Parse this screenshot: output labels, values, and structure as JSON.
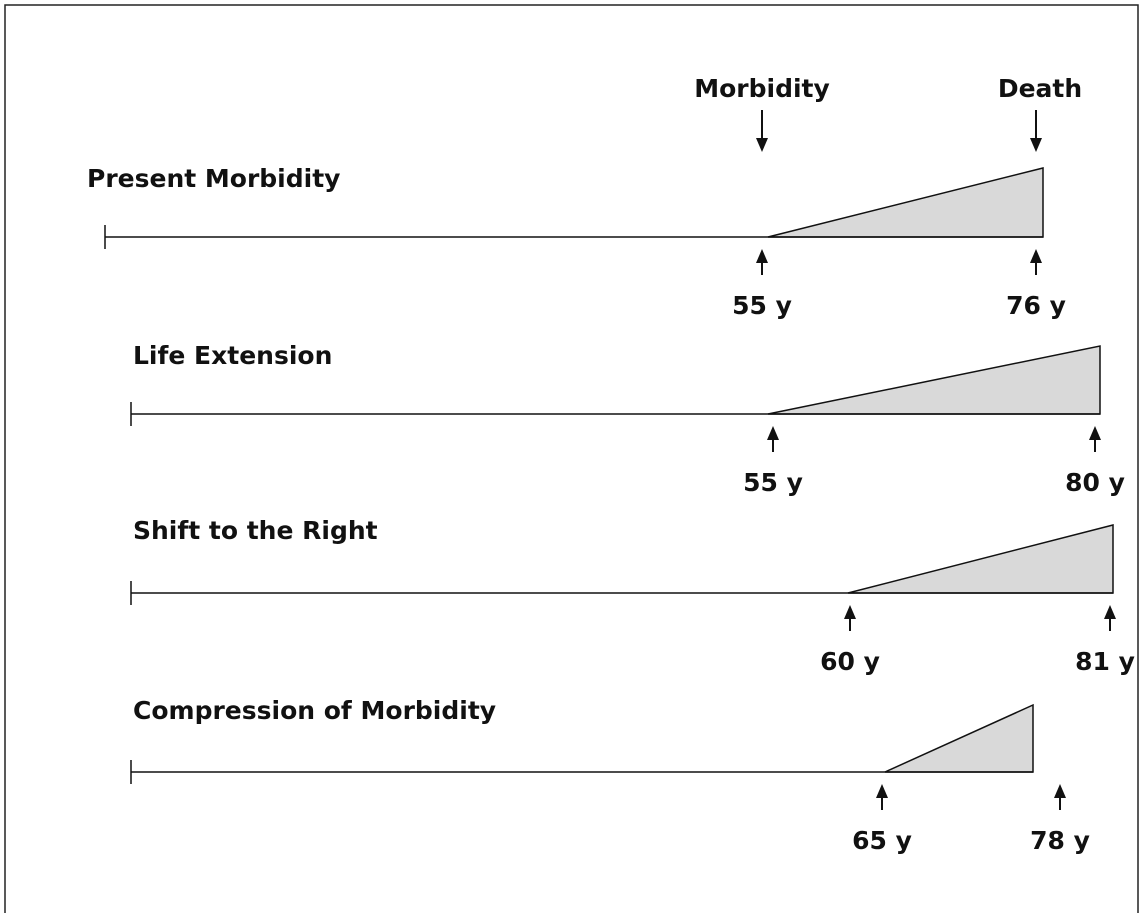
{
  "header": {
    "morbidity": "Morbidity",
    "death": "Death"
  },
  "rows": [
    {
      "title": "Present Morbidity",
      "start": "55 y",
      "end": "76 y"
    },
    {
      "title": "Life Extension",
      "start": "55 y",
      "end": "80 y"
    },
    {
      "title": "Shift to the Right",
      "start": "60 y",
      "end": "81 y"
    },
    {
      "title": "Compression of Morbidity",
      "start": "65 y",
      "end": "78 y"
    }
  ]
}
